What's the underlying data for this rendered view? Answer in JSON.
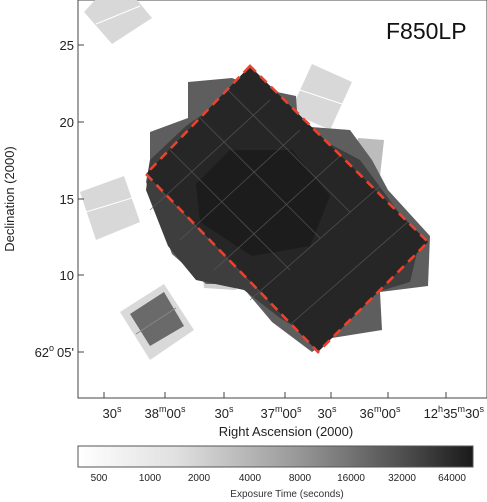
{
  "chart_data": {
    "type": "heatmap",
    "filter_label": "F850LP",
    "xlabel": "Right Ascension (2000)",
    "ylabel": "Declination (2000)",
    "x_ticks": [
      {
        "main": "30",
        "sup": "s"
      },
      {
        "main": "38",
        "sup": "m",
        "main2": "00",
        "sup2": "s"
      },
      {
        "main": "30",
        "sup": "s"
      },
      {
        "main": "37",
        "sup": "m",
        "main2": "00",
        "sup2": "s"
      },
      {
        "main": "30",
        "sup": "s"
      },
      {
        "main": "36",
        "sup": "m",
        "main2": "00",
        "sup2": "s"
      },
      {
        "main": "12",
        "sup": "h",
        "main2": "35",
        "sup2": "m",
        "main3": "30",
        "sup3": "s"
      }
    ],
    "y_ticks": [
      "25",
      "20",
      "15",
      "10"
    ],
    "y_bottom_tick": {
      "deg": "62",
      "deg_sup": "o",
      "min": "05'"
    },
    "ylim_arcmin": [
      3,
      27.8
    ],
    "colorbar": {
      "title": "Exposure Time (seconds)",
      "ticks": [
        "500",
        "1000",
        "2000",
        "4000",
        "8000",
        "16000",
        "32000",
        "64000"
      ],
      "scale": "log",
      "colors": [
        "#ffffff",
        "#1a1a1a"
      ]
    },
    "overlay_outline_color": "#e8432e",
    "colors": {
      "background": "#ffffff",
      "deep": "#2a2a2a",
      "shallow": "#d8d8d8"
    }
  }
}
